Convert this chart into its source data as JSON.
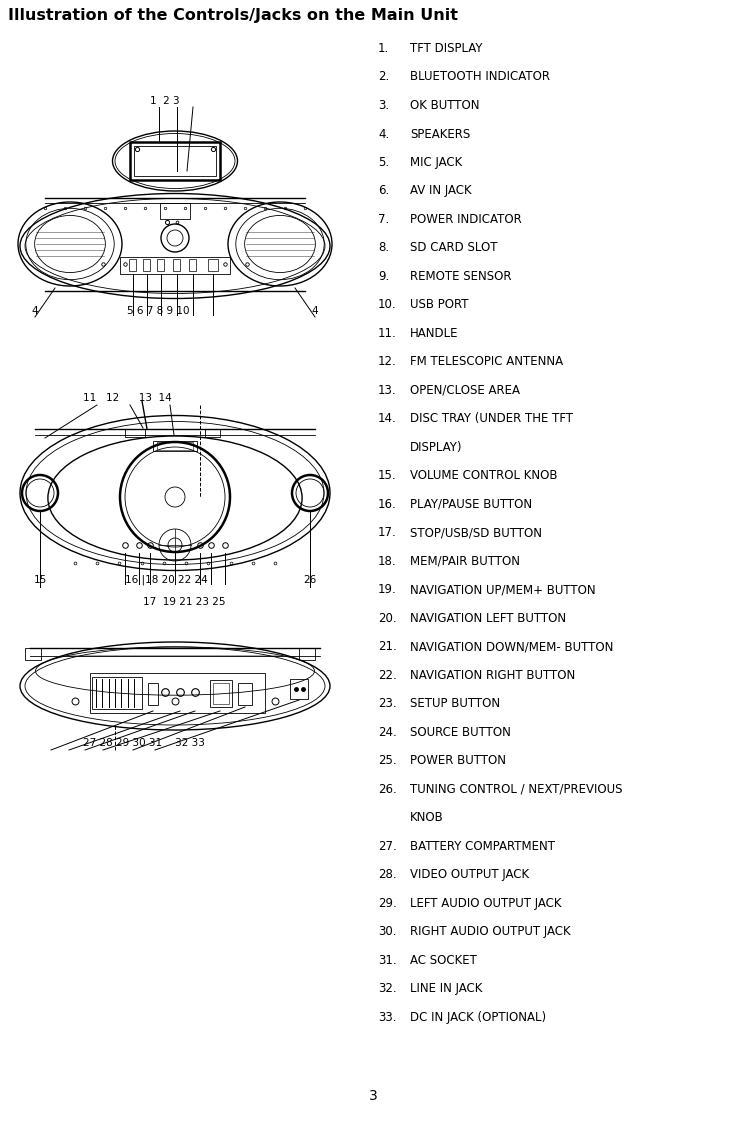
{
  "title": "Illustration of the Controls/Jacks on the Main Unit",
  "title_fontsize": 11.5,
  "background_color": "#ffffff",
  "text_color": "#000000",
  "line_color": "#000000",
  "items": [
    [
      "1.",
      "TFT DISPLAY"
    ],
    [
      "2.",
      "BLUETOOTH INDICATOR"
    ],
    [
      "3.",
      "OK BUTTON"
    ],
    [
      "4.",
      "SPEAKERS"
    ],
    [
      "5.",
      "MIC JACK"
    ],
    [
      "6.",
      "AV IN JACK"
    ],
    [
      "7.",
      "POWER INDICATOR"
    ],
    [
      "8.",
      "SD CARD SLOT"
    ],
    [
      "9.",
      "REMOTE SENSOR"
    ],
    [
      "10.",
      "USB PORT"
    ],
    [
      "11.",
      "HANDLE"
    ],
    [
      "12.",
      "FM TELESCOPIC ANTENNA"
    ],
    [
      "13.",
      "OPEN/CLOSE AREA"
    ],
    [
      "14.",
      "DISC TRAY (UNDER THE TFT"
    ],
    [
      "",
      "DISPLAY)"
    ],
    [
      "15.",
      "VOLUME CONTROL KNOB"
    ],
    [
      "16.",
      "PLAY/PAUSE BUTTON"
    ],
    [
      "17.",
      "STOP/USB/SD BUTTON"
    ],
    [
      "18.",
      "MEM/PAIR BUTTON"
    ],
    [
      "19.",
      "NAVIGATION UP/MEM+ BUTTON"
    ],
    [
      "20.",
      "NAVIGATION LEFT BUTTON"
    ],
    [
      "21.",
      "NAVIGATION DOWN/MEM- BUTTON"
    ],
    [
      "22.",
      "NAVIGATION RIGHT BUTTON"
    ],
    [
      "23.",
      "SETUP BUTTON"
    ],
    [
      "24.",
      "SOURCE BUTTON"
    ],
    [
      "25.",
      "POWER BUTTON"
    ],
    [
      "26.",
      "TUNING CONTROL / NEXT/PREVIOUS"
    ],
    [
      "",
      "KNOB"
    ],
    [
      "27.",
      "BATTERY COMPARTMENT"
    ],
    [
      "28.",
      "VIDEO OUTPUT JACK"
    ],
    [
      "29.",
      "LEFT AUDIO OUTPUT JACK"
    ],
    [
      "30.",
      "RIGHT AUDIO OUTPUT JACK"
    ],
    [
      "31.",
      "AC SOCKET"
    ],
    [
      "32.",
      "LINE IN JACK"
    ],
    [
      "33.",
      "DC IN JACK (OPTIONAL)"
    ]
  ],
  "page_number": "3",
  "fig_width": 7.47,
  "fig_height": 11.21,
  "dpi": 100
}
